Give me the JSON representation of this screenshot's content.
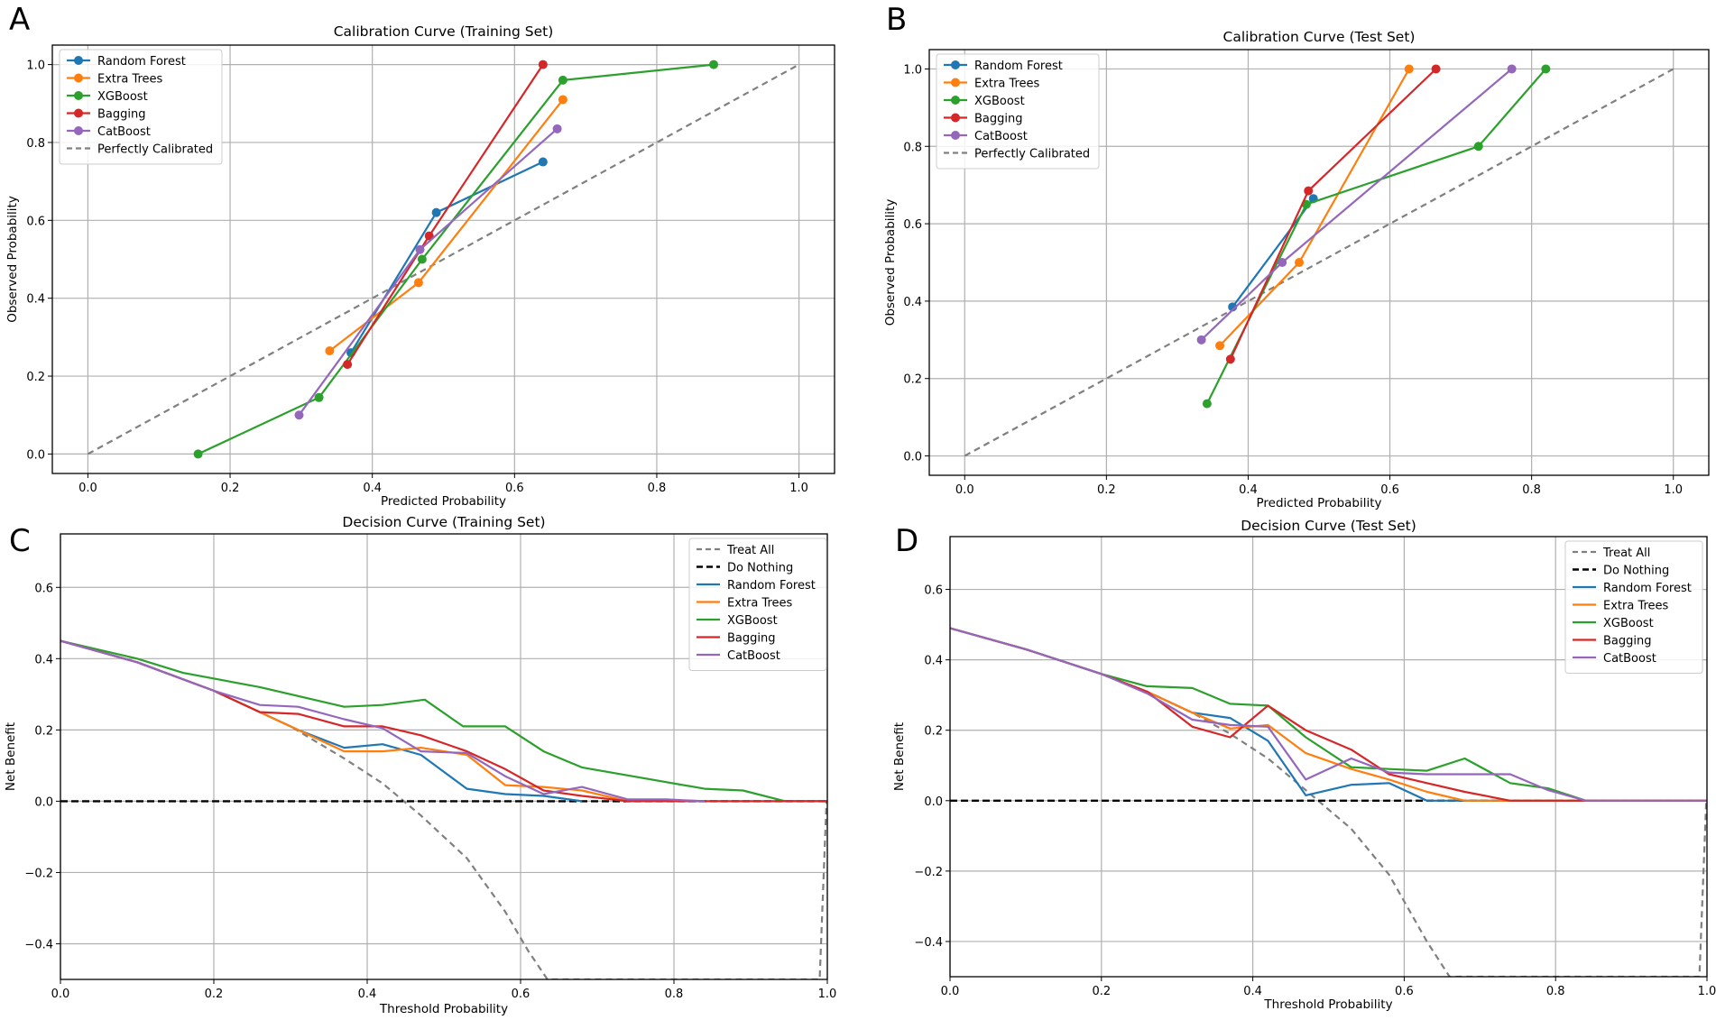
{
  "colors": {
    "Random Forest": "#1f77b4",
    "Extra Trees": "#ff7f0e",
    "XGBoost": "#2ca02c",
    "Bagging": "#d62728",
    "CatBoost": "#9467bd",
    "reference": "#808080",
    "do_nothing": "#000000"
  },
  "chart_data": [
    {
      "panel_label": "A",
      "type": "line",
      "title": "Calibration Curve (Training Set)",
      "xlabel": "Predicted Probability",
      "ylabel": "Observed Probability",
      "xlim": [
        -0.05,
        1.05
      ],
      "ylim": [
        -0.05,
        1.05
      ],
      "xticks": [
        0.0,
        0.2,
        0.4,
        0.6,
        0.8,
        1.0
      ],
      "yticks": [
        0.0,
        0.2,
        0.4,
        0.6,
        0.8,
        1.0
      ],
      "tick_labels_x": [
        "0.0",
        "0.2",
        "0.4",
        "0.6",
        "0.8",
        "1.0"
      ],
      "tick_labels_y": [
        "0.0",
        "0.2",
        "0.4",
        "0.6",
        "0.8",
        "1.0"
      ],
      "grid": true,
      "legend": "top-left",
      "series": [
        {
          "name": "Random Forest",
          "x": [
            0.37,
            0.49,
            0.64
          ],
          "y": [
            0.26,
            0.62,
            0.75
          ],
          "markers": true
        },
        {
          "name": "Extra Trees",
          "x": [
            0.34,
            0.465,
            0.668
          ],
          "y": [
            0.265,
            0.44,
            0.91
          ],
          "markers": true
        },
        {
          "name": "XGBoost",
          "x": [
            0.155,
            0.325,
            0.47,
            0.668,
            0.88
          ],
          "y": [
            0.0,
            0.145,
            0.5,
            0.96,
            1.0
          ],
          "markers": true
        },
        {
          "name": "Bagging",
          "x": [
            0.365,
            0.48,
            0.64
          ],
          "y": [
            0.23,
            0.56,
            1.0
          ],
          "markers": true
        },
        {
          "name": "CatBoost",
          "x": [
            0.297,
            0.467,
            0.66
          ],
          "y": [
            0.1,
            0.525,
            0.835
          ],
          "markers": true
        },
        {
          "name": "Perfectly Calibrated",
          "x": [
            0.0,
            1.0
          ],
          "y": [
            0.0,
            1.0
          ],
          "dashed": true,
          "markers": false
        }
      ]
    },
    {
      "panel_label": "B",
      "type": "line",
      "title": "Calibration Curve (Test Set)",
      "xlabel": "Predicted Probability",
      "ylabel": "Observed Probability",
      "xlim": [
        -0.05,
        1.05
      ],
      "ylim": [
        -0.05,
        1.05
      ],
      "xticks": [
        0.0,
        0.2,
        0.4,
        0.6,
        0.8,
        1.0
      ],
      "yticks": [
        0.0,
        0.2,
        0.4,
        0.6,
        0.8,
        1.0
      ],
      "tick_labels_x": [
        "0.0",
        "0.2",
        "0.4",
        "0.6",
        "0.8",
        "1.0"
      ],
      "tick_labels_y": [
        "0.0",
        "0.2",
        "0.4",
        "0.6",
        "0.8",
        "1.0"
      ],
      "grid": true,
      "legend": "top-left",
      "series": [
        {
          "name": "Random Forest",
          "x": [
            0.378,
            0.492
          ],
          "y": [
            0.385,
            0.665
          ],
          "markers": true
        },
        {
          "name": "Extra Trees",
          "x": [
            0.36,
            0.472,
            0.627
          ],
          "y": [
            0.285,
            0.5,
            1.0
          ],
          "markers": true
        },
        {
          "name": "XGBoost",
          "x": [
            0.342,
            0.482,
            0.725,
            0.82
          ],
          "y": [
            0.135,
            0.65,
            0.8,
            1.0
          ],
          "markers": true
        },
        {
          "name": "Bagging",
          "x": [
            0.375,
            0.485,
            0.665
          ],
          "y": [
            0.25,
            0.685,
            1.0
          ],
          "markers": true
        },
        {
          "name": "CatBoost",
          "x": [
            0.334,
            0.448,
            0.772
          ],
          "y": [
            0.3,
            0.5,
            1.0
          ],
          "markers": true
        },
        {
          "name": "Perfectly Calibrated",
          "x": [
            0.0,
            1.0
          ],
          "y": [
            0.0,
            1.0
          ],
          "dashed": true,
          "markers": false
        }
      ]
    },
    {
      "panel_label": "C",
      "type": "line",
      "title": "Decision Curve (Training Set)",
      "xlabel": "Threshold Probability",
      "ylabel": "Net Benefit",
      "xlim": [
        0.0,
        1.0
      ],
      "ylim": [
        -0.5,
        0.75
      ],
      "xticks": [
        0.0,
        0.2,
        0.4,
        0.6,
        0.8,
        1.0
      ],
      "yticks": [
        -0.4,
        -0.2,
        0.0,
        0.2,
        0.4,
        0.6
      ],
      "tick_labels_x": [
        "0.0",
        "0.2",
        "0.4",
        "0.6",
        "0.8",
        "1.0"
      ],
      "tick_labels_y": [
        "−0.4",
        "−0.2",
        "0.0",
        "0.2",
        "0.4",
        "0.6"
      ],
      "grid": true,
      "legend": "top-right",
      "series": [
        {
          "name": "Treat All",
          "x": [
            0.0,
            0.1,
            0.2,
            0.3,
            0.37,
            0.42,
            0.47,
            0.53,
            0.58,
            0.61,
            0.635,
            0.99,
            0.999
          ],
          "y": [
            0.45,
            0.39,
            0.31,
            0.21,
            0.12,
            0.05,
            -0.04,
            -0.16,
            -0.31,
            -0.42,
            -0.5,
            -0.5,
            0.0
          ],
          "dashed": true,
          "style": "gray"
        },
        {
          "name": "Do Nothing",
          "x": [
            0.0,
            1.0
          ],
          "y": [
            0.0,
            0.0
          ],
          "dashed": true,
          "style": "black"
        },
        {
          "name": "Random Forest",
          "x": [
            0.0,
            0.1,
            0.2,
            0.26,
            0.31,
            0.37,
            0.42,
            0.47,
            0.53,
            0.58,
            0.63,
            0.68
          ],
          "y": [
            0.45,
            0.39,
            0.31,
            0.25,
            0.2,
            0.15,
            0.16,
            0.13,
            0.035,
            0.02,
            0.015,
            0.0
          ]
        },
        {
          "name": "Extra Trees",
          "x": [
            0.0,
            0.1,
            0.2,
            0.26,
            0.31,
            0.37,
            0.42,
            0.47,
            0.53,
            0.58,
            0.63,
            0.68,
            0.74
          ],
          "y": [
            0.45,
            0.39,
            0.31,
            0.25,
            0.2,
            0.14,
            0.14,
            0.15,
            0.13,
            0.045,
            0.04,
            0.03,
            0.0
          ]
        },
        {
          "name": "XGBoost",
          "x": [
            0.0,
            0.1,
            0.16,
            0.26,
            0.37,
            0.42,
            0.475,
            0.525,
            0.58,
            0.63,
            0.68,
            0.84,
            0.89,
            0.945,
            1.0
          ],
          "y": [
            0.45,
            0.4,
            0.36,
            0.32,
            0.265,
            0.27,
            0.285,
            0.21,
            0.21,
            0.14,
            0.095,
            0.035,
            0.03,
            0.0,
            0.0
          ]
        },
        {
          "name": "Bagging",
          "x": [
            0.0,
            0.1,
            0.2,
            0.26,
            0.31,
            0.37,
            0.42,
            0.47,
            0.53,
            0.58,
            0.63,
            0.68,
            0.74,
            0.79,
            1.0
          ],
          "y": [
            0.45,
            0.39,
            0.31,
            0.25,
            0.245,
            0.21,
            0.21,
            0.185,
            0.14,
            0.09,
            0.03,
            0.015,
            0.0,
            0.0,
            0.0
          ]
        },
        {
          "name": "CatBoost",
          "x": [
            0.0,
            0.1,
            0.2,
            0.26,
            0.31,
            0.37,
            0.42,
            0.47,
            0.53,
            0.58,
            0.63,
            0.68,
            0.74,
            0.79,
            0.84
          ],
          "y": [
            0.45,
            0.39,
            0.31,
            0.27,
            0.265,
            0.23,
            0.205,
            0.14,
            0.135,
            0.07,
            0.02,
            0.04,
            0.005,
            0.005,
            0.0
          ]
        }
      ]
    },
    {
      "panel_label": "D",
      "type": "line",
      "title": "Decision Curve (Test Set)",
      "xlabel": "Threshold Probability",
      "ylabel": "Net Benefit",
      "xlim": [
        0.0,
        1.0
      ],
      "ylim": [
        -0.5,
        0.75
      ],
      "xticks": [
        0.0,
        0.2,
        0.4,
        0.6,
        0.8,
        1.0
      ],
      "yticks": [
        -0.4,
        -0.2,
        0.0,
        0.2,
        0.4,
        0.6
      ],
      "tick_labels_x": [
        "0.0",
        "0.2",
        "0.4",
        "0.6",
        "0.8",
        "1.0"
      ],
      "tick_labels_y": [
        "−0.4",
        "−0.2",
        "0.0",
        "0.2",
        "0.4",
        "0.6"
      ],
      "grid": true,
      "legend": "top-right",
      "series": [
        {
          "name": "Treat All",
          "x": [
            0.0,
            0.1,
            0.2,
            0.26,
            0.32,
            0.37,
            0.42,
            0.47,
            0.53,
            0.58,
            0.63,
            0.66,
            0.99,
            0.999
          ],
          "y": [
            0.49,
            0.43,
            0.36,
            0.31,
            0.25,
            0.19,
            0.12,
            0.03,
            -0.08,
            -0.21,
            -0.4,
            -0.5,
            -0.5,
            0.0
          ],
          "dashed": true,
          "style": "gray"
        },
        {
          "name": "Do Nothing",
          "x": [
            0.0,
            1.0
          ],
          "y": [
            0.0,
            0.0
          ],
          "dashed": true,
          "style": "black"
        },
        {
          "name": "Random Forest",
          "x": [
            0.0,
            0.1,
            0.2,
            0.26,
            0.32,
            0.37,
            0.42,
            0.47,
            0.53,
            0.58,
            0.63,
            1.0
          ],
          "y": [
            0.49,
            0.43,
            0.36,
            0.31,
            0.25,
            0.235,
            0.17,
            0.015,
            0.045,
            0.05,
            0.0,
            0.0
          ]
        },
        {
          "name": "Extra Trees",
          "x": [
            0.0,
            0.1,
            0.2,
            0.26,
            0.32,
            0.37,
            0.42,
            0.47,
            0.53,
            0.58,
            0.63,
            0.68,
            1.0
          ],
          "y": [
            0.49,
            0.43,
            0.36,
            0.31,
            0.25,
            0.205,
            0.215,
            0.135,
            0.09,
            0.06,
            0.025,
            0.0,
            0.0
          ]
        },
        {
          "name": "XGBoost",
          "x": [
            0.0,
            0.1,
            0.2,
            0.26,
            0.32,
            0.37,
            0.42,
            0.47,
            0.53,
            0.58,
            0.63,
            0.68,
            0.74,
            0.79,
            0.84,
            1.0
          ],
          "y": [
            0.49,
            0.43,
            0.36,
            0.325,
            0.32,
            0.275,
            0.27,
            0.18,
            0.095,
            0.09,
            0.085,
            0.12,
            0.05,
            0.035,
            0.0,
            0.0
          ]
        },
        {
          "name": "Bagging",
          "x": [
            0.0,
            0.1,
            0.2,
            0.26,
            0.32,
            0.37,
            0.42,
            0.47,
            0.53,
            0.58,
            0.63,
            0.68,
            0.74,
            1.0
          ],
          "y": [
            0.49,
            0.43,
            0.36,
            0.31,
            0.21,
            0.18,
            0.27,
            0.2,
            0.145,
            0.075,
            0.05,
            0.025,
            0.0,
            0.0
          ]
        },
        {
          "name": "CatBoost",
          "x": [
            0.0,
            0.1,
            0.2,
            0.26,
            0.32,
            0.37,
            0.42,
            0.47,
            0.53,
            0.58,
            0.63,
            0.68,
            0.74,
            0.79,
            0.84,
            1.0
          ],
          "y": [
            0.49,
            0.43,
            0.36,
            0.305,
            0.23,
            0.215,
            0.21,
            0.06,
            0.12,
            0.08,
            0.075,
            0.075,
            0.075,
            0.03,
            0.0,
            0.0
          ]
        }
      ]
    }
  ]
}
